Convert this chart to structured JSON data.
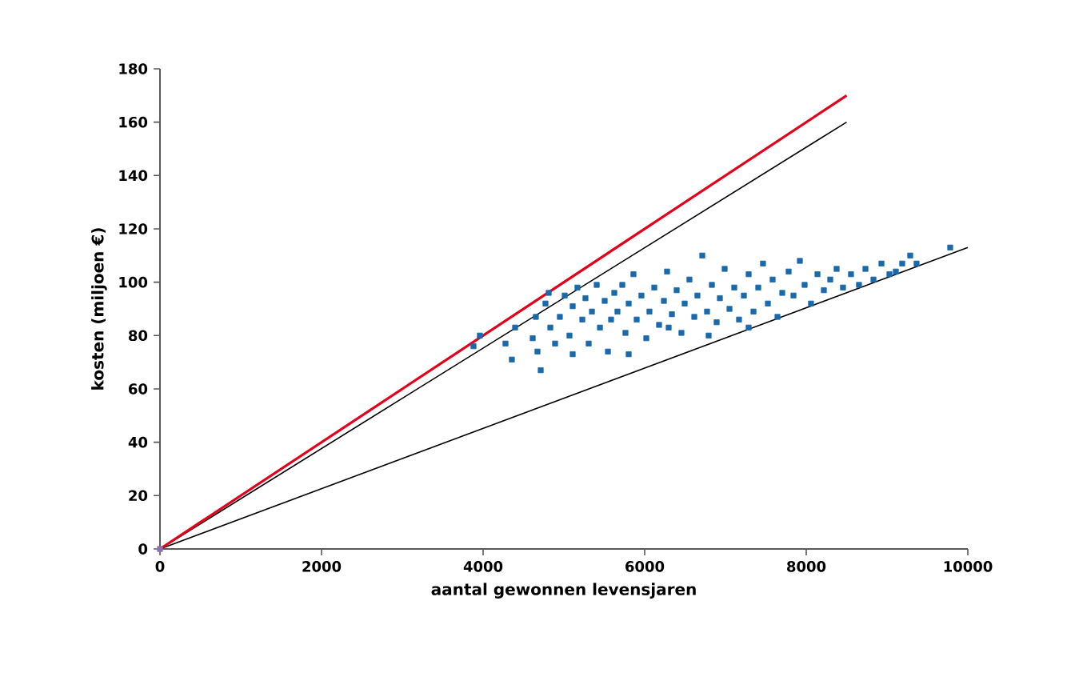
{
  "chart_data": {
    "type": "scatter",
    "xlabel": "aantal gewonnen levensjaren",
    "ylabel": "kosten (miljoen €)",
    "xlim": [
      0,
      10000
    ],
    "ylim": [
      0,
      180
    ],
    "xticks": [
      0,
      2000,
      4000,
      6000,
      8000,
      10000
    ],
    "yticks": [
      0,
      20,
      40,
      60,
      80,
      100,
      120,
      140,
      160,
      180
    ],
    "marker": "square",
    "series": [
      {
        "color": "#1a6aab",
        "x": [
          3881,
          3960,
          4277,
          4356,
          4396,
          4614,
          4713,
          4673,
          4653,
          4772,
          4832,
          4891,
          4812,
          4950,
          5010,
          5069,
          5109,
          5168,
          5228,
          5267,
          5307,
          5347,
          5406,
          5446,
          5505,
          5545,
          5584,
          5624,
          5663,
          5723,
          5762,
          5802,
          5861,
          5901,
          5960,
          6020,
          6059,
          6119,
          6178,
          6238,
          6277,
          6337,
          6396,
          6455,
          6495,
          6554,
          6614,
          6653,
          6713,
          6772,
          6832,
          6891,
          6931,
          6990,
          7050,
          7109,
          7168,
          7228,
          7287,
          7347,
          7406,
          7465,
          7525,
          7584,
          7644,
          7703,
          7782,
          7842,
          7921,
          7980,
          8059,
          8139,
          8218,
          8297,
          8376,
          8455,
          8554,
          8653,
          8733,
          8832,
          8931,
          9030,
          9109,
          9188,
          9287,
          9366,
          9782,
          5802,
          5109,
          6297,
          6792,
          7287
        ],
        "values": [
          76,
          80,
          77,
          71,
          83,
          79,
          67,
          74,
          87,
          92,
          83,
          77,
          96,
          87,
          95,
          80,
          91,
          98,
          86,
          94,
          77,
          89,
          99,
          83,
          93,
          74,
          86,
          96,
          89,
          99,
          81,
          92,
          103,
          86,
          95,
          79,
          89,
          98,
          84,
          93,
          104,
          88,
          97,
          81,
          92,
          101,
          87,
          95,
          110,
          89,
          99,
          85,
          94,
          105,
          90,
          98,
          86,
          95,
          103,
          89,
          98,
          107,
          92,
          101,
          87,
          96,
          104,
          95,
          108,
          99,
          92,
          103,
          97,
          101,
          105,
          98,
          103,
          99,
          105,
          101,
          107,
          103,
          104,
          107,
          110,
          107,
          113,
          73,
          73,
          83,
          80,
          83
        ]
      },
      {
        "color": "#8e6fae",
        "x": [
          0
        ],
        "values": [
          0
        ]
      },
      {
        "type": "line",
        "marker": "none",
        "color": "#000000",
        "x": [
          0,
          10000
        ],
        "values": [
          0,
          113
        ]
      },
      {
        "type": "line",
        "marker": "none",
        "color": "#000000",
        "x": [
          0,
          8500
        ],
        "values": [
          0,
          160
        ]
      },
      {
        "type": "line",
        "marker": "none",
        "color": "#e3001b",
        "x": [
          0,
          8500
        ],
        "values": [
          0,
          170
        ]
      }
    ]
  }
}
